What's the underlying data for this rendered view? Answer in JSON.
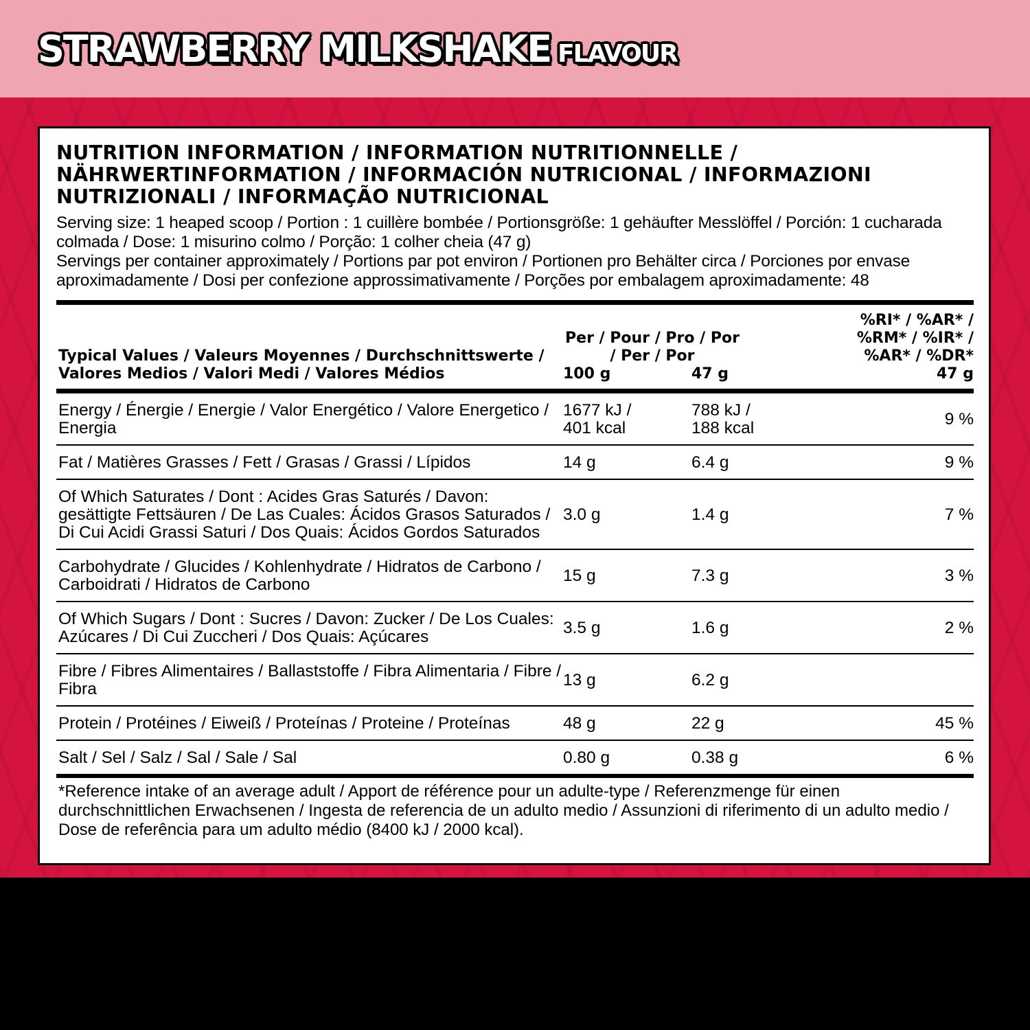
{
  "title": {
    "main": "STRAWBERRY MILKSHAKE",
    "sub": "FLAVOUR"
  },
  "colors": {
    "header_bg": "#efa6b0",
    "band_bg": "#d4133f",
    "panel_bg": "#ffffff"
  },
  "heading": "NUTRITION INFORMATION / INFORMATION NUTRITIONNELLE / NÄHRWERTINFORMATION / INFORMACIÓN NUTRICIONAL / INFORMAZIONI NUTRIZIONALI / INFORMAÇÃO NUTRICIONAL",
  "serving_size": "Serving size: 1 heaped scoop / Portion : 1 cuillère bombée / Portionsgröße: 1 gehäufter Messlöffel / Porción: 1 cucharada colmada /  Dose: 1 misurino colmo / Porção: 1 colher cheia (47 g)",
  "servings_per_container": "Servings per container approximately / Portions par pot environ / Portionen pro Behälter circa / Porciones por envase aproximadamente /  Dosi per confezione approssimativamente / Porções por embalagem aproximadamente: 48",
  "table": {
    "header": {
      "label": "Typical Values / Valeurs Moyennes / Durchschnittswerte / Valores Medios / Valori Medi / Valores Médios",
      "per": "Per / Pour / Pro / Por / Per / Por",
      "col1": "100 g",
      "col2": "47 g",
      "ri": "%RI* / %AR* / %RM* / %IR* / %AR* / %DR*",
      "col3": "47 g"
    },
    "rows": [
      {
        "label": "Energy / Énergie / Energie / Valor Energético / Valore Energetico / Energia",
        "per100": "1677 kJ / 401 kcal",
        "perServing": "788 kJ / 188 kcal",
        "ri": "9 %"
      },
      {
        "label": "Fat / Matières Grasses / Fett / Grasas / Grassi /  Lípidos",
        "per100": "14 g",
        "perServing": "6.4 g",
        "ri": "9 %"
      },
      {
        "label": "Of Which Saturates / Dont : Acides Gras Saturés / Davon: gesättigte Fettsäuren / De Las Cuales: Ácidos Grasos Saturados / Di Cui Acidi Grassi Saturi / Dos Quais: Ácidos Gordos Saturados",
        "per100": "3.0 g",
        "perServing": "1.4 g",
        "ri": "7 %"
      },
      {
        "label": "Carbohydrate / Glucides / Kohlenhydrate / Hidratos de Carbono / Carboidrati / Hidratos de Carbono",
        "per100": "15 g",
        "perServing": "7.3 g",
        "ri": "3 %"
      },
      {
        "label": "Of Which Sugars / Dont : Sucres / Davon: Zucker / De Los Cuales: Azúcares / Di Cui Zuccheri / Dos Quais: Açúcares",
        "per100": "3.5 g",
        "perServing": "1.6 g",
        "ri": "2 %"
      },
      {
        "label": "Fibre / Fibres Alimentaires / Ballaststoffe / Fibra Alimentaria / Fibre / Fibra",
        "per100": "13 g",
        "perServing": "6.2 g",
        "ri": ""
      },
      {
        "label": "Protein / Protéines / Eiweiß / Proteínas / Proteine / Proteínas",
        "per100": "48 g",
        "perServing": "22 g",
        "ri": "45 %"
      },
      {
        "label": "Salt / Sel / Salz / Sal / Sale / Sal",
        "per100": "0.80 g",
        "perServing": "0.38 g",
        "ri": "6 %"
      }
    ]
  },
  "footnote": "*Reference intake of an average adult / Apport de référence pour un adulte-type / Referenzmenge für einen durchschnittlichen Erwachsenen / Ingesta de referencia de un adulto medio / Assunzioni di riferimento di un adulto medio / Dose de referência para um adulto médio (8400 kJ / 2000 kcal)."
}
